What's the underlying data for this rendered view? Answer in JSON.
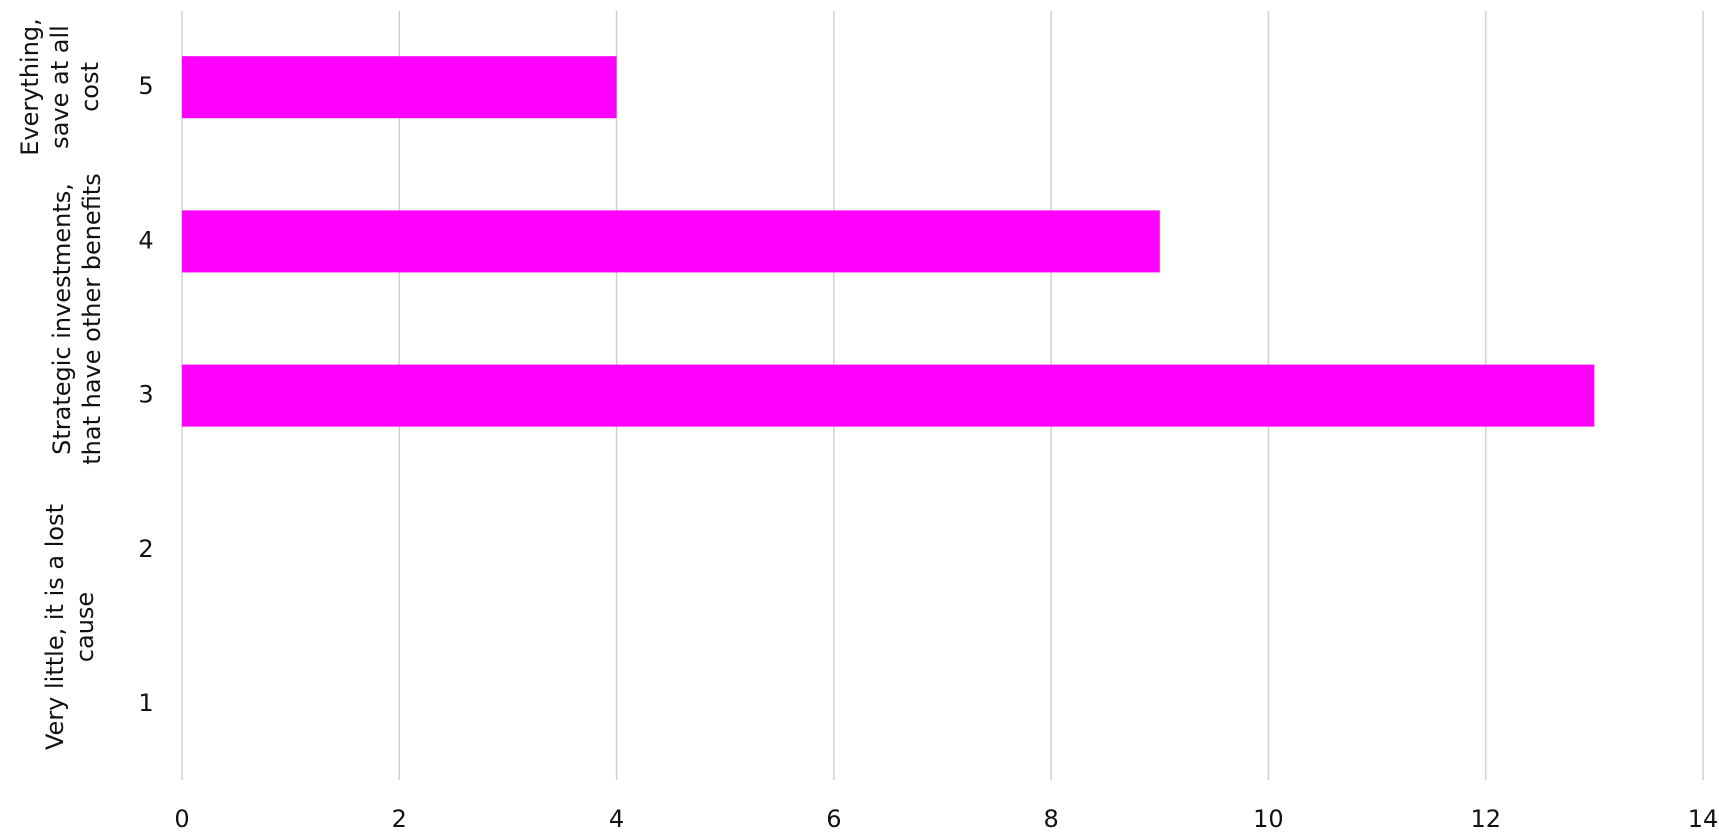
{
  "chart_data": {
    "type": "barh",
    "categories": [
      "1",
      "2",
      "3",
      "4",
      "5"
    ],
    "values": [
      0,
      0,
      13,
      9,
      4
    ],
    "color": "#ff00ff",
    "xlim": [
      0,
      14
    ],
    "xticks": [
      0,
      2,
      4,
      6,
      8,
      10,
      12,
      14
    ],
    "grid": true,
    "group_labels": [
      "Very little, it is a lost cause",
      "Strategic investments, that have other benefits",
      "Everything, save at all cost"
    ]
  }
}
